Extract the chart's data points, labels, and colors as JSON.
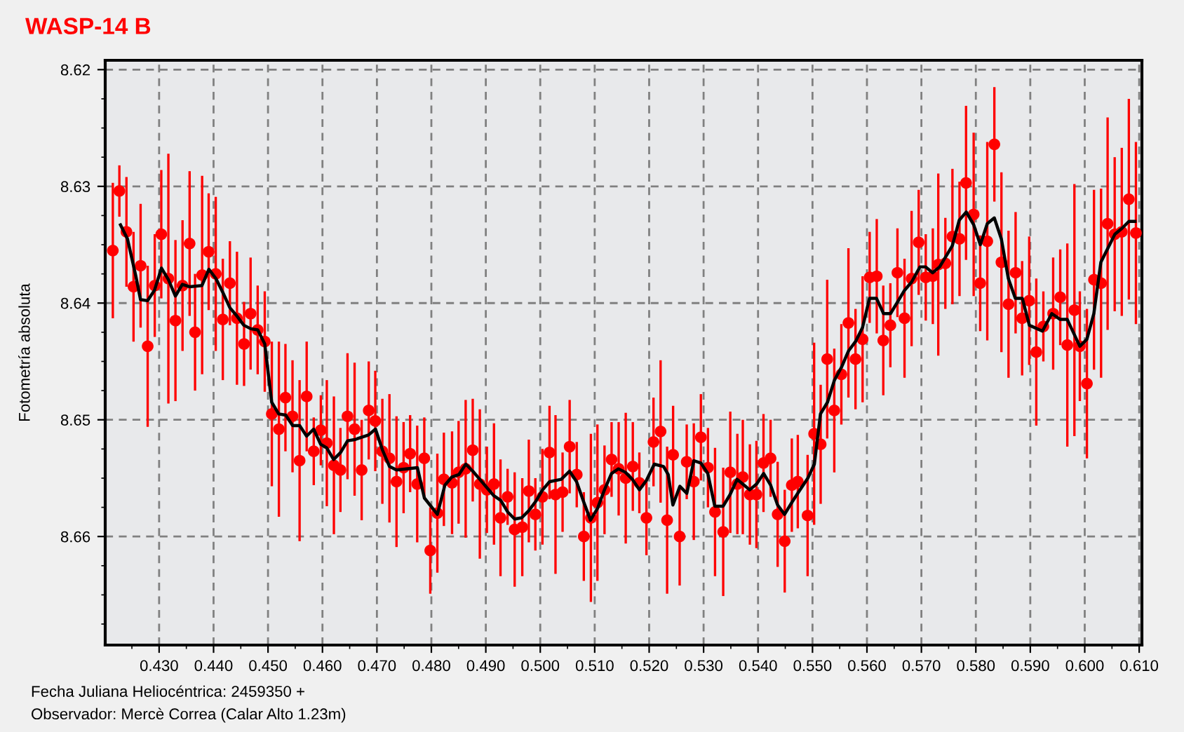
{
  "chart_data": {
    "type": "scatter",
    "title": "WASP-14 B",
    "ylabel": "Fotometría absoluta",
    "xlabel": "Fecha Juliana Heliocéntrica: 2459350 +",
    "annotations": [
      "Observador: Mercè Correa (Calar Alto 1.23m)"
    ],
    "xlim": [
      0.4201,
      0.6105
    ],
    "ylim": [
      8.6693,
      8.6192
    ],
    "xticks": [
      {
        "value": 0.43,
        "label": "0.430"
      },
      {
        "value": 0.44,
        "label": "0.440"
      },
      {
        "value": 0.45,
        "label": "0.450"
      },
      {
        "value": 0.46,
        "label": "0.460"
      },
      {
        "value": 0.47,
        "label": "0.470"
      },
      {
        "value": 0.48,
        "label": "0.480"
      },
      {
        "value": 0.49,
        "label": "0.490"
      },
      {
        "value": 0.5,
        "label": "0.500"
      },
      {
        "value": 0.51,
        "label": "0.510"
      },
      {
        "value": 0.52,
        "label": "0.520"
      },
      {
        "value": 0.53,
        "label": "0.530"
      },
      {
        "value": 0.54,
        "label": "0.540"
      },
      {
        "value": 0.55,
        "label": "0.550"
      },
      {
        "value": 0.56,
        "label": "0.560"
      },
      {
        "value": 0.57,
        "label": "0.570"
      },
      {
        "value": 0.58,
        "label": "0.580"
      },
      {
        "value": 0.59,
        "label": "0.590"
      },
      {
        "value": 0.6,
        "label": "0.600"
      },
      {
        "value": 0.61,
        "label": "0.610"
      }
    ],
    "yticks": [
      8.62,
      8.63,
      8.64,
      8.65,
      8.66
    ],
    "grid": true,
    "series": [
      {
        "color": "#ff0000",
        "marker": "circle",
        "x": [
          0.4215,
          0.4227,
          0.424,
          0.4253,
          0.4266,
          0.4279,
          0.4292,
          0.4304,
          0.4317,
          0.433,
          0.4343,
          0.4356,
          0.4366,
          0.4379,
          0.4391,
          0.4404,
          0.4417,
          0.443,
          0.4443,
          0.4456,
          0.4468,
          0.4481,
          0.4494,
          0.4507,
          0.452,
          0.4532,
          0.4545,
          0.4558,
          0.4571,
          0.4584,
          0.4597,
          0.4608,
          0.4621,
          0.4633,
          0.4646,
          0.4659,
          0.4672,
          0.4685,
          0.4697,
          0.471,
          0.4723,
          0.4736,
          0.4749,
          0.4761,
          0.4774,
          0.4787,
          0.4798,
          0.4811,
          0.4823,
          0.4838,
          0.485,
          0.4863,
          0.4876,
          0.4889,
          0.4902,
          0.4915,
          0.4927,
          0.494,
          0.4953,
          0.4967,
          0.4979,
          0.4991,
          0.5004,
          0.5017,
          0.5028,
          0.5041,
          0.5054,
          0.5067,
          0.508,
          0.5093,
          0.5105,
          0.5118,
          0.5131,
          0.5144,
          0.5157,
          0.517,
          0.5182,
          0.5195,
          0.5208,
          0.5221,
          0.5233,
          0.5244,
          0.5256,
          0.5269,
          0.5282,
          0.5295,
          0.5308,
          0.5321,
          0.5336,
          0.5349,
          0.5362,
          0.5372,
          0.5385,
          0.5397,
          0.541,
          0.5423,
          0.5436,
          0.5449,
          0.5462,
          0.5473,
          0.5491,
          0.5503,
          0.5515,
          0.5527,
          0.554,
          0.5553,
          0.5566,
          0.5579,
          0.5592,
          0.5605,
          0.5618,
          0.563,
          0.5643,
          0.5656,
          0.5669,
          0.5682,
          0.5695,
          0.5708,
          0.5721,
          0.5731,
          0.5744,
          0.5757,
          0.577,
          0.5782,
          0.5796,
          0.5808,
          0.5821,
          0.5834,
          0.5847,
          0.586,
          0.5873,
          0.5885,
          0.5898,
          0.5911,
          0.5924,
          0.5942,
          0.5955,
          0.5968,
          0.5981,
          0.5991,
          0.6004,
          0.6017,
          0.603,
          0.6042,
          0.6055,
          0.6068,
          0.6081,
          0.6094
        ],
        "values": [
          8.6355,
          8.6304,
          8.6339,
          8.6386,
          8.6368,
          8.6437,
          8.6385,
          8.6341,
          8.6379,
          8.6415,
          8.6385,
          8.6349,
          8.6425,
          8.6376,
          8.6356,
          8.6375,
          8.6414,
          8.6383,
          8.6413,
          8.6435,
          8.6409,
          8.6423,
          8.6433,
          8.6495,
          8.6508,
          8.6481,
          8.6497,
          8.6535,
          8.648,
          8.6527,
          8.6509,
          8.652,
          8.6539,
          8.6543,
          8.6497,
          8.6508,
          8.6543,
          8.6492,
          8.6501,
          8.6527,
          8.6533,
          8.6553,
          8.6541,
          8.6529,
          8.6555,
          8.6533,
          8.6612,
          8.658,
          8.6551,
          8.6554,
          8.6545,
          8.6542,
          8.6526,
          8.6555,
          8.656,
          8.6555,
          8.6584,
          8.6566,
          8.6594,
          8.6592,
          8.6561,
          8.6581,
          8.6566,
          8.6528,
          8.6564,
          8.6562,
          8.6523,
          8.6547,
          8.66,
          8.6584,
          8.6571,
          8.656,
          8.6534,
          8.6542,
          8.655,
          8.654,
          8.6554,
          8.6584,
          8.6519,
          8.651,
          8.6586,
          8.653,
          8.66,
          8.6536,
          8.6553,
          8.6515,
          8.6541,
          8.6579,
          8.6596,
          8.6545,
          8.6555,
          8.6549,
          8.6564,
          8.6564,
          8.6537,
          8.6533,
          8.6581,
          8.6604,
          8.6556,
          8.6553,
          8.6582,
          8.6512,
          8.6521,
          8.6448,
          8.6492,
          8.6461,
          8.6417,
          8.6448,
          8.6431,
          8.6378,
          8.6377,
          8.6432,
          8.6419,
          8.6374,
          8.6413,
          8.6379,
          8.6348,
          8.6378,
          8.6377,
          8.6367,
          8.6366,
          8.6343,
          8.6345,
          8.6297,
          8.6324,
          8.6383,
          8.6347,
          8.6264,
          8.6365,
          8.6401,
          8.6374,
          8.6413,
          8.6398,
          8.6442,
          8.642,
          8.6409,
          8.6395,
          8.6436,
          8.6406,
          8.6437,
          8.6469,
          8.638,
          8.6383,
          8.6332,
          8.6341,
          8.6339,
          8.6311,
          8.634
        ],
        "errors": [
          0.0058,
          0.0022,
          0.0047,
          0.0047,
          0.0053,
          0.0069,
          0.0044,
          0.0055,
          0.0107,
          0.0069,
          0.0056,
          0.0062,
          0.005,
          0.0085,
          0.005,
          0.0066,
          0.0052,
          0.0036,
          0.0057,
          0.0036,
          0.0048,
          0.0038,
          0.0043,
          0.0062,
          0.0075,
          0.0046,
          0.0048,
          0.0069,
          0.0047,
          0.0029,
          0.003,
          0.0054,
          0.0059,
          0.0036,
          0.0054,
          0.0057,
          0.0043,
          0.0042,
          0.0043,
          0.0045,
          0.0055,
          0.0056,
          0.0039,
          0.0033,
          0.005,
          0.0035,
          0.0037,
          0.0051,
          0.004,
          0.0044,
          0.0044,
          0.0059,
          0.0044,
          0.0064,
          0.0037,
          0.0052,
          0.005,
          0.0024,
          0.0049,
          0.0042,
          0.0044,
          0.0031,
          0.0041,
          0.004,
          0.0068,
          0.0034,
          0.004,
          0.0028,
          0.0038,
          0.0072,
          0.0067,
          0.0038,
          0.0032,
          0.004,
          0.0056,
          0.0038,
          0.0026,
          0.0032,
          0.0038,
          0.0061,
          0.0063,
          0.0042,
          0.0042,
          0.0032,
          0.005,
          0.0037,
          0.0034,
          0.0055,
          0.0055,
          0.0052,
          0.0043,
          0.0049,
          0.0043,
          0.0046,
          0.0042,
          0.0033,
          0.0045,
          0.0044,
          0.004,
          0.004,
          0.0052,
          0.0078,
          0.0051,
          0.0068,
          0.0053,
          0.0043,
          0.0064,
          0.0043,
          0.0054,
          0.0039,
          0.0049,
          0.0047,
          0.0036,
          0.0038,
          0.0051,
          0.0058,
          0.0045,
          0.0037,
          0.0041,
          0.0078,
          0.0039,
          0.0058,
          0.0049,
          0.0066,
          0.007,
          0.0041,
          0.0085,
          0.0049,
          0.0077,
          0.0063,
          0.0052,
          0.0049,
          0.0055,
          0.0063,
          0.003,
          0.0048,
          0.0041,
          0.0087,
          0.0108,
          0.0047,
          0.0064,
          0.0077,
          0.0081,
          0.0091,
          0.0066,
          0.0072,
          0.0086,
          0.0078
        ]
      },
      {
        "type": "line",
        "color": "#000000",
        "marker": "none",
        "line_style": "solid",
        "x": [
          0.42291,
          0.42419,
          0.42573,
          0.42658,
          0.42786,
          0.42915,
          0.43043,
          0.43171,
          0.43299,
          0.43427,
          0.43556,
          0.43786,
          0.43915,
          0.44043,
          0.44171,
          0.44299,
          0.44427,
          0.44556,
          0.44684,
          0.44812,
          0.4494,
          0.45068,
          0.45197,
          0.45325,
          0.45453,
          0.45581,
          0.45709,
          0.45838,
          0.45966,
          0.46077,
          0.46205,
          0.46333,
          0.46462,
          0.4659,
          0.46846,
          0.46974,
          0.47103,
          0.47231,
          0.47359,
          0.47744,
          0.47872,
          0.48111,
          0.48248,
          0.48376,
          0.48504,
          0.48632,
          0.48761,
          0.48889,
          0.49017,
          0.49145,
          0.49274,
          0.49402,
          0.4953,
          0.49658,
          0.49786,
          0.49915,
          0.50043,
          0.50171,
          0.50385,
          0.50538,
          0.50667,
          0.50795,
          0.50923,
          0.51051,
          0.51179,
          0.51308,
          0.51436,
          0.51564,
          0.51692,
          0.51821,
          0.51949,
          0.52094,
          0.52265,
          0.5235,
          0.52436,
          0.52564,
          0.52692,
          0.52821,
          0.52949,
          0.53077,
          0.53205,
          0.53359,
          0.53487,
          0.53615,
          0.53718,
          0.53846,
          0.53974,
          0.54103,
          0.54231,
          0.54359,
          0.54487,
          0.54631,
          0.54742,
          0.54914,
          0.55034,
          0.55146,
          0.55275,
          0.55403,
          0.55532,
          0.55661,
          0.5579,
          0.55918,
          0.56047,
          0.56176,
          0.56305,
          0.56433,
          0.56562,
          0.56691,
          0.5682,
          0.56974,
          0.57077,
          0.57206,
          0.57335,
          0.57567,
          0.57695,
          0.57824,
          0.57961,
          0.58082,
          0.5821,
          0.58339,
          0.58468,
          0.58597,
          0.58725,
          0.58854,
          0.58983,
          0.59223,
          0.59395,
          0.59549,
          0.59678,
          0.5991,
          0.60039,
          0.60167,
          0.60296,
          0.60425,
          0.60554,
          0.60682,
          0.60811,
          0.60923
        ],
        "values": [
          8.6333,
          8.6345,
          8.6377,
          8.6397,
          8.6398,
          8.6389,
          8.637,
          8.638,
          8.6394,
          8.6384,
          8.6386,
          8.6385,
          8.6371,
          8.6379,
          8.6391,
          8.6404,
          8.6411,
          8.6419,
          8.6422,
          8.6423,
          8.6435,
          8.6485,
          8.6495,
          8.6496,
          8.6505,
          8.6505,
          8.6514,
          8.6508,
          8.6521,
          8.6524,
          8.6534,
          8.6528,
          8.6518,
          8.6517,
          8.6513,
          8.6508,
          8.6526,
          8.654,
          8.6543,
          8.6541,
          8.6567,
          8.6581,
          8.6556,
          8.6549,
          8.6547,
          8.6538,
          8.6544,
          8.6551,
          8.6558,
          8.6565,
          8.6569,
          8.6579,
          8.6585,
          8.6584,
          8.6578,
          8.657,
          8.656,
          8.6553,
          8.6551,
          8.6544,
          8.6553,
          8.657,
          8.6586,
          8.6576,
          8.656,
          8.6546,
          8.6542,
          8.6545,
          8.6551,
          8.656,
          8.6552,
          8.6538,
          8.654,
          8.6547,
          8.6573,
          8.6557,
          8.6563,
          8.6535,
          8.6537,
          8.6546,
          8.6574,
          8.6574,
          8.6564,
          8.6551,
          8.6555,
          8.656,
          8.6555,
          8.6546,
          8.6556,
          8.6573,
          8.6581,
          8.657,
          8.6562,
          8.655,
          8.6538,
          8.6495,
          8.6485,
          8.6466,
          8.6455,
          8.6441,
          8.6433,
          8.6421,
          8.6396,
          8.6396,
          8.6409,
          8.6409,
          8.6399,
          8.6389,
          8.6382,
          8.6369,
          8.6369,
          8.6374,
          8.6369,
          8.6351,
          8.6329,
          8.6322,
          8.6333,
          8.635,
          8.6332,
          8.6327,
          8.6345,
          8.6379,
          8.6396,
          8.6396,
          8.6419,
          8.6424,
          8.6409,
          8.6414,
          8.6414,
          8.6437,
          8.6431,
          8.6409,
          8.6365,
          8.6353,
          8.6341,
          8.6336,
          8.633,
          8.633
        ]
      }
    ]
  }
}
